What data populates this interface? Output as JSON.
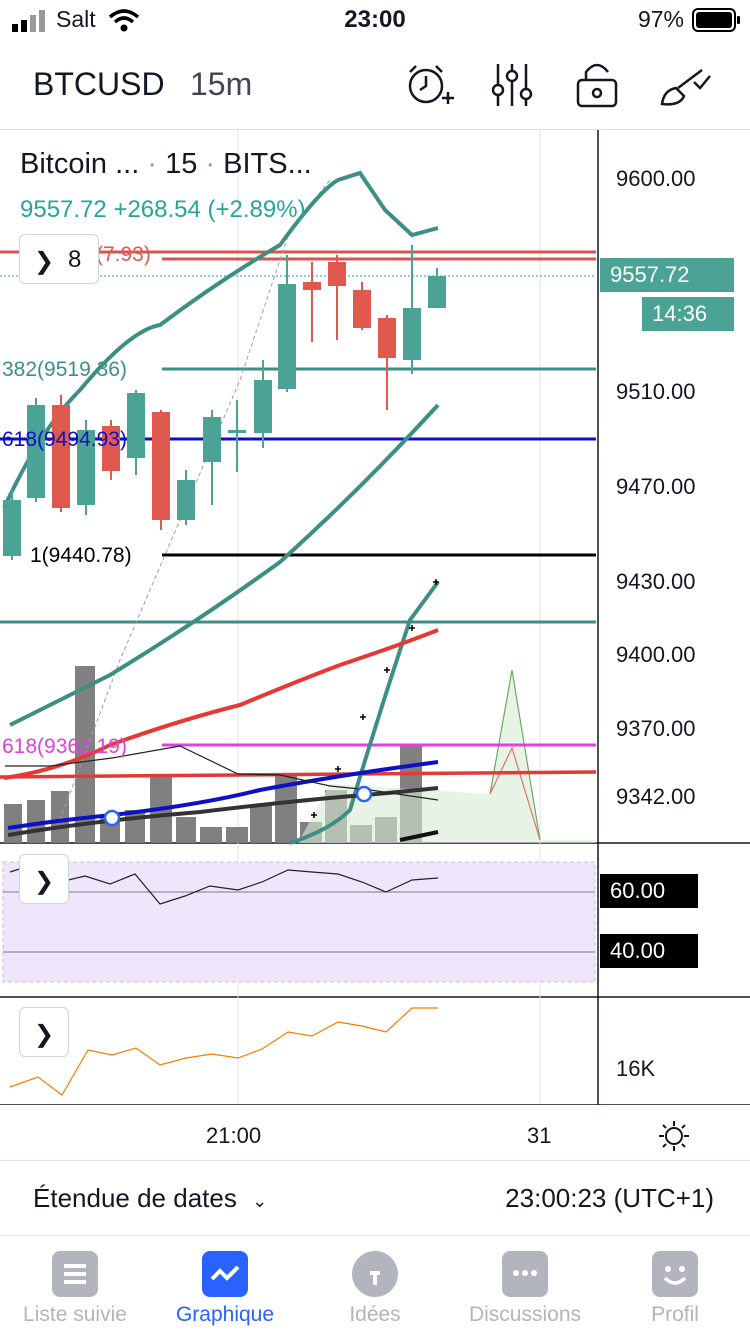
{
  "status_bar": {
    "carrier": "Salt",
    "time": "23:00",
    "battery": "97%"
  },
  "header": {
    "symbol": "BTCUSD",
    "interval": "15m",
    "buttons": [
      {
        "name": "alert-add-icon"
      },
      {
        "name": "indicators-icon"
      },
      {
        "name": "lock-icon"
      },
      {
        "name": "drawing-brush-icon"
      }
    ]
  },
  "legend": {
    "name": "Bitcoin ...",
    "interval": "15",
    "exchange": "BITS...",
    "last": "9557.72",
    "change": "+268.54 (+2.89%)",
    "collapsed_count": "8"
  },
  "price_axis": {
    "labels": [
      "9600.00",
      "9510.00",
      "9470.00",
      "9430.00",
      "9400.00",
      "9370.00",
      "9342.00"
    ],
    "last_price_tag": "9557.72",
    "countdown_tag": "14:36"
  },
  "fib_labels": {
    "level_top": "(7.93)",
    "level_382": "382(9519.36)",
    "level_618": "618(9494.93)",
    "level_1": "1(9440.78)",
    "level_618b": "618(9362.19)"
  },
  "rsi_panel": {
    "upper": "60.00",
    "lower": "40.00"
  },
  "volume_panel": {
    "label": "16K"
  },
  "time_axis": [
    "21:00",
    "31"
  ],
  "date_bar": {
    "range_label": "Étendue de dates",
    "clock": "23:00:23 (UTC+1)"
  },
  "tabs": [
    {
      "label": "Liste suivie",
      "icon": "watchlist-icon"
    },
    {
      "label": "Graphique",
      "icon": "chart-icon",
      "active": true
    },
    {
      "label": "Idées",
      "icon": "ideas-icon"
    },
    {
      "label": "Discussions",
      "icon": "chat-icon"
    },
    {
      "label": "Profil",
      "icon": "profile-icon"
    }
  ],
  "colors": {
    "up": "#4aa394",
    "down": "#e0594f",
    "accent": "#2962ff",
    "fib_blue": "#0d10c4",
    "fib_magenta": "#e040e0"
  }
}
